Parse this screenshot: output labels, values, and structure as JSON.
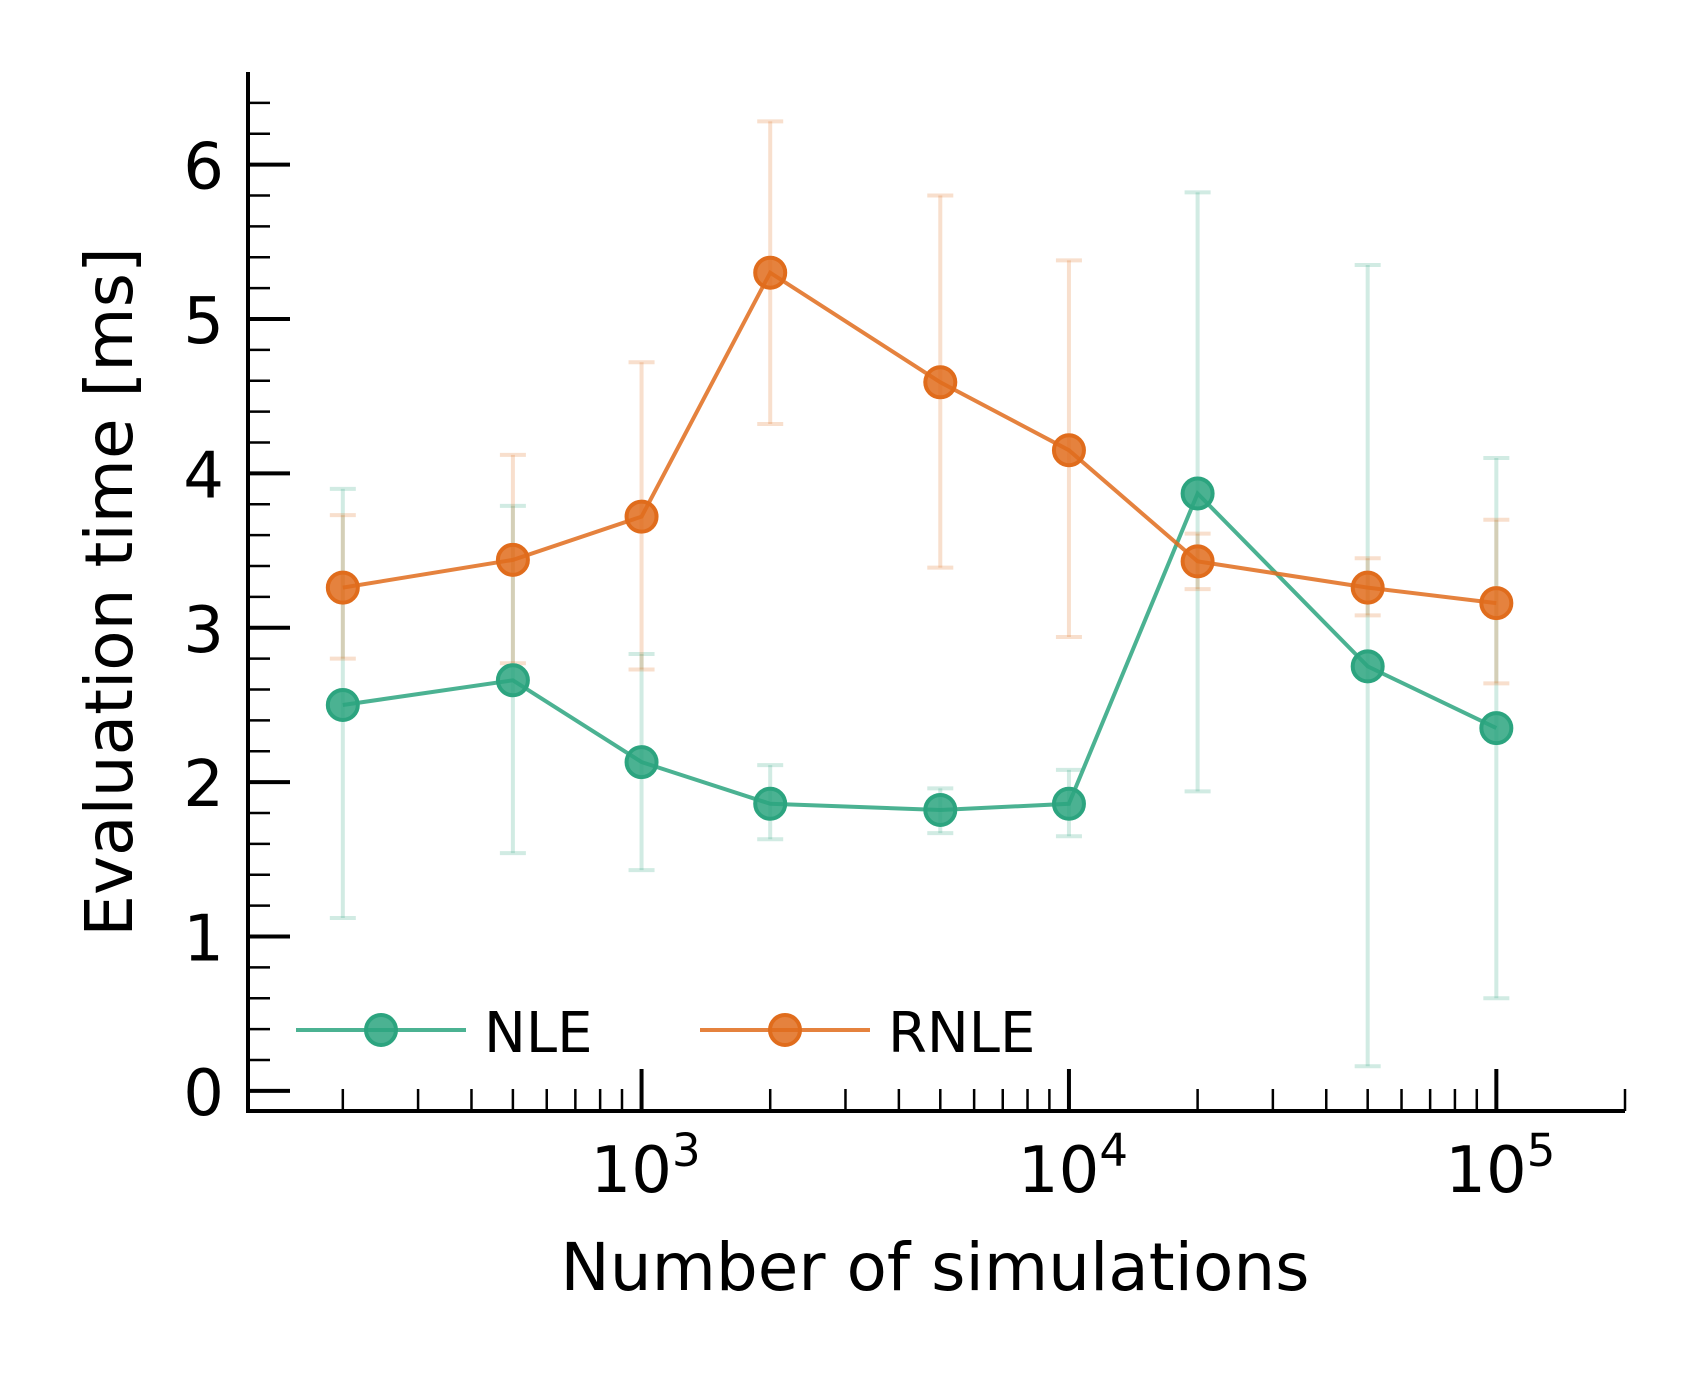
{
  "chart_data": {
    "type": "line",
    "xscale": "log",
    "xlabel": "Number of simulations",
    "ylabel": "Evaluation time [ms]",
    "xlim": [
      120,
      200000
    ],
    "ylim": [
      -0.13,
      6.6
    ],
    "x": [
      200,
      500,
      1000,
      2000,
      5000,
      10000,
      20000,
      50000,
      100000
    ],
    "yticks": [
      0,
      1,
      2,
      3,
      4,
      5,
      6
    ],
    "xticks": [
      {
        "value": 1000,
        "base": "10",
        "exp": "3"
      },
      {
        "value": 10000,
        "base": "10",
        "exp": "4"
      },
      {
        "value": 100000,
        "base": "10",
        "exp": "5"
      }
    ],
    "legend_position": "lower-left",
    "series": [
      {
        "name": "NLE",
        "color": "#2ca47f",
        "values": [
          2.5,
          2.66,
          2.13,
          1.86,
          1.82,
          1.86,
          3.87,
          2.75,
          2.35
        ],
        "err_low": [
          1.12,
          1.54,
          1.43,
          1.63,
          1.67,
          1.65,
          1.94,
          0.16,
          0.6
        ],
        "err_high": [
          3.9,
          3.79,
          2.83,
          2.11,
          1.96,
          2.08,
          5.82,
          5.35,
          4.1
        ]
      },
      {
        "name": "RNLE",
        "color": "#e06c1c",
        "values": [
          3.26,
          3.44,
          3.72,
          5.3,
          4.59,
          4.15,
          3.43,
          3.26,
          3.16
        ],
        "err_low": [
          2.8,
          2.77,
          2.73,
          4.32,
          3.39,
          2.94,
          3.25,
          3.08,
          2.64
        ],
        "err_high": [
          3.73,
          4.12,
          4.72,
          6.28,
          5.8,
          5.38,
          3.61,
          3.45,
          3.7
        ]
      }
    ]
  }
}
